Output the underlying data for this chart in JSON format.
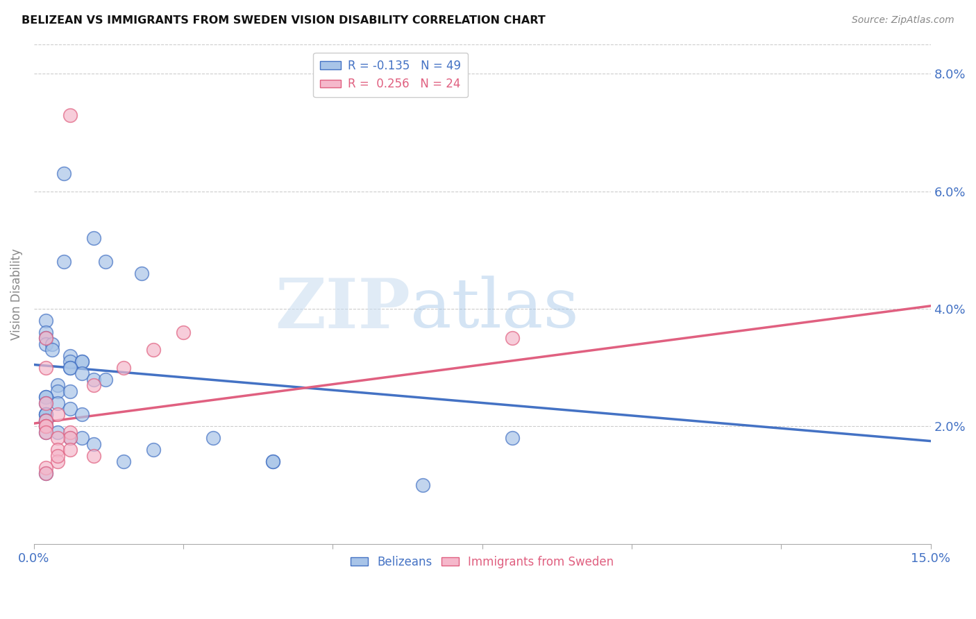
{
  "title": "BELIZEAN VS IMMIGRANTS FROM SWEDEN VISION DISABILITY CORRELATION CHART",
  "source": "Source: ZipAtlas.com",
  "ylabel": "Vision Disability",
  "yticks_vals": [
    0.02,
    0.04,
    0.06,
    0.08
  ],
  "yticks_labels": [
    "2.0%",
    "4.0%",
    "6.0%",
    "8.0%"
  ],
  "legend_blue_r": "-0.135",
  "legend_blue_n": "49",
  "legend_pink_r": "0.256",
  "legend_pink_n": "24",
  "legend_label_blue": "Belizeans",
  "legend_label_pink": "Immigrants from Sweden",
  "blue_face_color": "#A8C4E8",
  "pink_face_color": "#F5B8CB",
  "blue_edge_color": "#4472C4",
  "pink_edge_color": "#E06080",
  "blue_line_color": "#4472C4",
  "pink_line_color": "#E06080",
  "watermark_zip": "ZIP",
  "watermark_atlas": "atlas",
  "xlim": [
    0.0,
    0.15
  ],
  "ylim": [
    0.0,
    0.085
  ],
  "xtick_vals": [
    0.0,
    0.025,
    0.05,
    0.075,
    0.1,
    0.125,
    0.15
  ],
  "blue_scatter_x": [
    0.005,
    0.01,
    0.005,
    0.012,
    0.018,
    0.002,
    0.002,
    0.002,
    0.002,
    0.003,
    0.003,
    0.006,
    0.006,
    0.008,
    0.008,
    0.006,
    0.006,
    0.008,
    0.01,
    0.004,
    0.012,
    0.004,
    0.006,
    0.002,
    0.002,
    0.002,
    0.004,
    0.006,
    0.008,
    0.002,
    0.002,
    0.002,
    0.002,
    0.002,
    0.002,
    0.002,
    0.002,
    0.004,
    0.006,
    0.008,
    0.01,
    0.03,
    0.02,
    0.015,
    0.002,
    0.08,
    0.04,
    0.04,
    0.065
  ],
  "blue_scatter_y": [
    0.063,
    0.052,
    0.048,
    0.048,
    0.046,
    0.038,
    0.036,
    0.035,
    0.034,
    0.034,
    0.033,
    0.032,
    0.031,
    0.031,
    0.031,
    0.03,
    0.03,
    0.029,
    0.028,
    0.027,
    0.028,
    0.026,
    0.026,
    0.025,
    0.025,
    0.024,
    0.024,
    0.023,
    0.022,
    0.022,
    0.022,
    0.022,
    0.021,
    0.021,
    0.02,
    0.02,
    0.019,
    0.019,
    0.018,
    0.018,
    0.017,
    0.018,
    0.016,
    0.014,
    0.012,
    0.018,
    0.014,
    0.014,
    0.01
  ],
  "pink_scatter_x": [
    0.006,
    0.002,
    0.002,
    0.002,
    0.004,
    0.002,
    0.002,
    0.002,
    0.002,
    0.006,
    0.006,
    0.025,
    0.02,
    0.015,
    0.004,
    0.01,
    0.004,
    0.01,
    0.004,
    0.002,
    0.002,
    0.08,
    0.004,
    0.006
  ],
  "pink_scatter_y": [
    0.073,
    0.035,
    0.03,
    0.024,
    0.022,
    0.021,
    0.02,
    0.02,
    0.019,
    0.019,
    0.018,
    0.036,
    0.033,
    0.03,
    0.018,
    0.027,
    0.016,
    0.015,
    0.014,
    0.013,
    0.012,
    0.035,
    0.015,
    0.016
  ],
  "blue_line_x": [
    0.0,
    0.15
  ],
  "blue_line_y": [
    0.0305,
    0.0175
  ],
  "pink_line_x": [
    0.0,
    0.15
  ],
  "pink_line_y": [
    0.0205,
    0.0405
  ]
}
